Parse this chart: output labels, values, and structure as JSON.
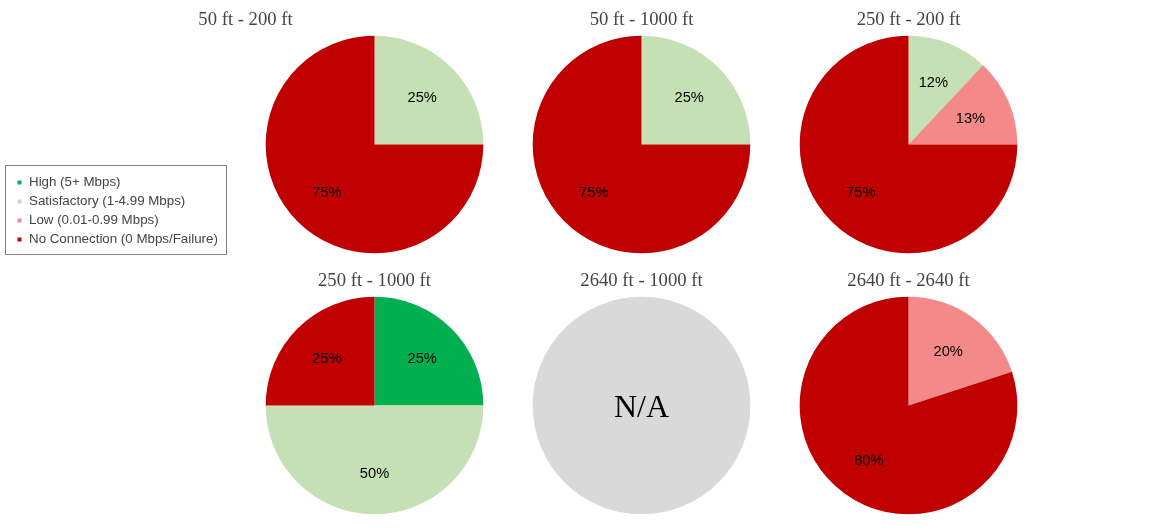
{
  "chart_data": [
    {
      "type": "pie",
      "title": "50 ft - 200 ft",
      "categories": [
        "High (5+ Mbps)",
        "Satisfactory (1-4.99 Mbps)",
        "Low (0.01-0.99 Mbps)",
        "No Connection (0 Mbps/Failure)"
      ],
      "values": [
        0,
        25,
        0,
        75
      ],
      "colors": [
        "#00b050",
        "#c5e0b4",
        "#f4898a",
        "#c00000"
      ],
      "value_labels": [
        null,
        "25%",
        null,
        "75%"
      ],
      "legend": "left"
    },
    {
      "type": "pie",
      "title": "50 ft - 1000 ft",
      "categories": [
        null,
        null,
        null,
        null
      ],
      "values": [
        0,
        25,
        0,
        75
      ],
      "colors": [
        "#00b050",
        "#c5e0b4",
        "#f4898a",
        "#c00000"
      ],
      "value_labels": [
        null,
        "25%",
        null,
        "75%"
      ]
    },
    {
      "type": "pie",
      "title": "250 ft - 200 ft",
      "categories": [
        null,
        null,
        null,
        null
      ],
      "values": [
        0,
        12,
        13,
        75
      ],
      "colors": [
        "#00b050",
        "#c5e0b4",
        "#f4898a",
        "#c00000"
      ],
      "value_labels": [
        null,
        "12%",
        "13%",
        "75%"
      ]
    },
    {
      "type": "pie",
      "title": "250 ft - 1000 ft",
      "categories": [
        null,
        null,
        null,
        null
      ],
      "values": [
        25,
        50,
        0,
        25
      ],
      "colors": [
        "#00b050",
        "#c5e0b4",
        "#f4898a",
        "#c00000"
      ],
      "value_labels": [
        "25%",
        "50%",
        null,
        "25%"
      ]
    },
    {
      "type": "pie",
      "title": "2640 ft - 1000 ft",
      "categories": [
        null
      ],
      "values": [
        100
      ],
      "colors": [
        "#d9d9d9"
      ],
      "annotations": [
        "N/A"
      ]
    },
    {
      "type": "pie",
      "title": "2640 ft - 2640 ft",
      "categories": [
        null,
        null,
        null,
        null
      ],
      "values": [
        0,
        0,
        20,
        80
      ],
      "colors": [
        "#00b050",
        "#c5e0b4",
        "#f4898a",
        "#c00000"
      ],
      "value_labels": [
        null,
        null,
        "20%",
        "80%"
      ]
    }
  ]
}
